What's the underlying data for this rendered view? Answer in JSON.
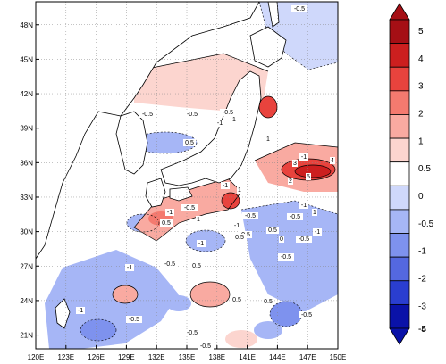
{
  "map": {
    "lat_labels": [
      "48N",
      "45N",
      "42N",
      "39N",
      "36N",
      "33N",
      "30N",
      "27N",
      "24N",
      "21N"
    ],
    "lon_labels": [
      "120E",
      "123E",
      "126E",
      "129E",
      "132E",
      "135E",
      "138E",
      "141E",
      "144E",
      "147E",
      "150E"
    ],
    "extent": {
      "lon_min": 120,
      "lon_max": 150,
      "lat_min": 19.8,
      "lat_max": 50
    },
    "background_color": "#ffffff",
    "contour_labels": [
      "-0.5",
      "-0.5",
      "-0.5",
      "-0.5",
      "0.5",
      "1",
      "-1",
      "1",
      "3",
      "-1",
      "4",
      "5",
      "2",
      "1",
      "-1",
      "-0.5",
      "-1",
      "0.5",
      "-0.5",
      "1",
      "-1",
      "0.5",
      "-0.5",
      "1",
      "-1",
      "0",
      "-1",
      "0.5",
      "-0.5",
      "-0.5",
      "0.5",
      "-1",
      "-0.5",
      "-1",
      "0.5",
      "-1",
      "-0.5",
      "-0.5",
      "0.5",
      "-0.5",
      "0.5",
      "-0.5"
    ]
  },
  "colorbar": {
    "levels": [
      "5",
      "4",
      "3",
      "2",
      "1",
      "0.5",
      "0",
      "-0.5",
      "-1",
      "-2",
      "-3",
      "-4",
      "-5"
    ],
    "colors": [
      "#a50f15",
      "#cc1f1f",
      "#e8433d",
      "#f47a6f",
      "#f9aaa1",
      "#fcd5cf",
      "#ffffff",
      "#cfd8fb",
      "#a6b6f6",
      "#7e92ee",
      "#5468e0",
      "#2a3ed0",
      "#0a12a8"
    ]
  }
}
